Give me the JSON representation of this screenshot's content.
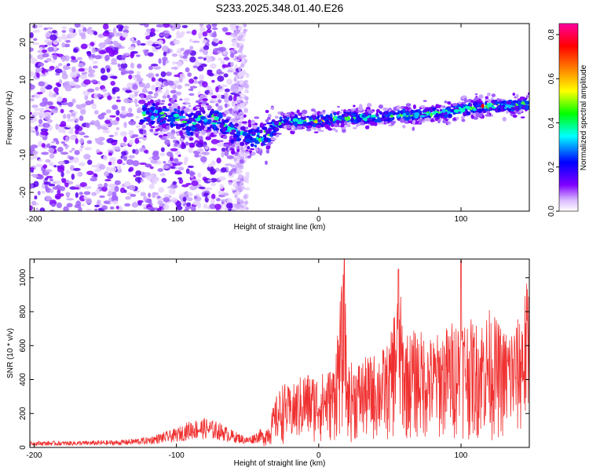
{
  "title": "S233.2025.348.01.40.E26",
  "chart_data": [
    {
      "type": "heatmap",
      "xlabel": "Height of straight line (km)",
      "ylabel": "Frequency (Hz)",
      "xlim": [
        -203,
        148
      ],
      "ylim": [
        -25,
        25
      ],
      "xticks": [
        -200,
        -100,
        0,
        100
      ],
      "yticks": [
        -20,
        -10,
        0,
        10,
        20
      ],
      "colorbar": {
        "label": "Normalized spectral amplitude",
        "range": [
          0,
          0.85
        ],
        "ticks": [
          "0.0",
          "0.2",
          "0.4",
          "0.6",
          "0.8"
        ],
        "colors": [
          "#ffffff",
          "#8000ff",
          "#0000ff",
          "#00ffff",
          "#00ff00",
          "#ffff00",
          "#ff8000",
          "#ff0000",
          "#ff00a0"
        ]
      },
      "ridge": {
        "x": [
          -120,
          -100,
          -90,
          -80,
          -70,
          -60,
          -50,
          -40,
          -35,
          -25,
          -10,
          0,
          20,
          40,
          60,
          80,
          100,
          120,
          140,
          148
        ],
        "y": [
          1,
          0,
          -2,
          0,
          -1,
          -4,
          -6,
          -5,
          -4,
          -1,
          -1,
          -1,
          0,
          0,
          0.5,
          1,
          2,
          3,
          3,
          4
        ]
      }
    },
    {
      "type": "line",
      "xlabel": "Height of straight line (km)",
      "ylabel": "SNR (10 * v/v)",
      "xlim": [
        -203,
        148
      ],
      "ylim": [
        0,
        1110
      ],
      "xticks": [
        -200,
        -100,
        0,
        100
      ],
      "yticks": [
        0,
        200,
        400,
        600,
        800,
        1000
      ],
      "line_color": "#f03030",
      "series": [
        {
          "x": [
            -203,
            -180,
            -160,
            -140,
            -120,
            -110,
            -100,
            -90,
            -80,
            -70,
            -60,
            -50,
            -40,
            -35,
            -30,
            -25,
            -20,
            -10,
            0,
            10,
            18,
            20,
            30,
            40,
            50,
            56,
            60,
            70,
            80,
            90,
            100,
            110,
            120,
            130,
            140,
            148
          ],
          "y": [
            30,
            30,
            32,
            35,
            50,
            70,
            90,
            130,
            140,
            120,
            80,
            50,
            90,
            150,
            300,
            390,
            350,
            450,
            430,
            480,
            1110,
            500,
            520,
            560,
            620,
            1050,
            680,
            700,
            650,
            720,
            800,
            740,
            820,
            700,
            760,
            1050
          ]
        }
      ]
    }
  ]
}
